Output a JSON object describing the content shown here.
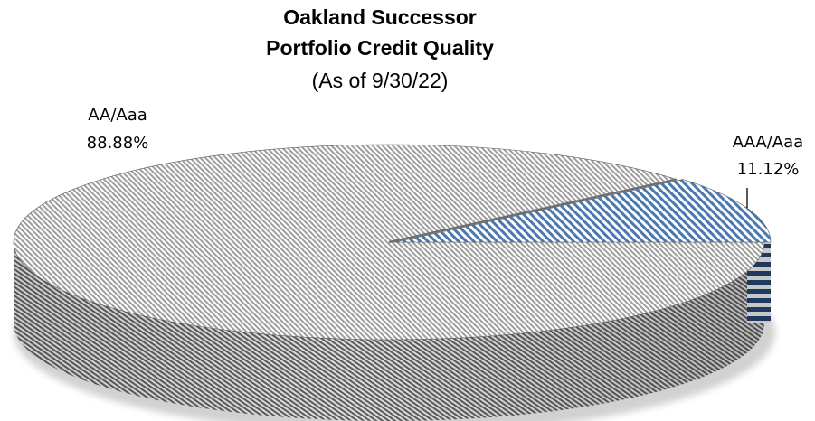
{
  "chart_data": {
    "type": "pie",
    "style": "3d-exploded",
    "title": [
      "Oakland Successor",
      "Portfolio Credit Quality"
    ],
    "subtitle": "(As of 9/30/22)",
    "slices": [
      {
        "name": "AA/Aaa",
        "value": 88.88,
        "label": "88.88%",
        "pattern": "diagonal-hatch",
        "colors": {
          "top_a": "#ffffff",
          "top_b": "#9e9e9e",
          "side_a": "#e3e3e3",
          "side_b": "#5e5e5e"
        }
      },
      {
        "name": "AAA/Aaa",
        "value": 11.12,
        "label": "11.12%",
        "pattern": "diagonal-hatch",
        "colors": {
          "top_a": "#ffffff",
          "top_b": "#4a78b0",
          "side_a": "#1f3a5f",
          "side_b": "#c8c8c8"
        }
      }
    ],
    "legend": "none"
  }
}
